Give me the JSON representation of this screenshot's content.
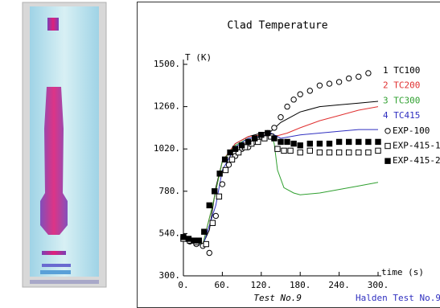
{
  "chart_data": {
    "type": "line",
    "title": "Clad Temperature",
    "y_label": "T (K)",
    "x_label": "time (s)",
    "footer_left": "Test No.9",
    "footer_right": "Halden Test No.9",
    "xlim": [
      0,
      300
    ],
    "ylim": [
      300,
      1500
    ],
    "xticks": [
      {
        "value": 0,
        "label": "0."
      },
      {
        "value": 60,
        "label": "60."
      },
      {
        "value": 120,
        "label": "120."
      },
      {
        "value": 180,
        "label": "180."
      },
      {
        "value": 240,
        "label": "240."
      },
      {
        "value": 300,
        "label": "300."
      }
    ],
    "yticks": [
      {
        "value": 300,
        "label": "300."
      },
      {
        "value": 540,
        "label": "540."
      },
      {
        "value": 780,
        "label": "780."
      },
      {
        "value": 1020,
        "label": "1020."
      },
      {
        "value": 1260,
        "label": "1260."
      },
      {
        "value": 1500,
        "label": "1500."
      }
    ],
    "series": [
      {
        "name": "1 TC100",
        "color": "#000000",
        "marker": "line",
        "x": [
          0,
          15,
          30,
          40,
          50,
          60,
          80,
          100,
          120,
          135,
          150,
          180,
          210,
          240,
          270,
          300
        ],
        "values": [
          500,
          490,
          480,
          560,
          800,
          950,
          1050,
          1090,
          1110,
          1120,
          1170,
          1230,
          1260,
          1270,
          1280,
          1290
        ]
      },
      {
        "name": "2 TC200",
        "color": "#e03030",
        "marker": "line",
        "x": [
          0,
          30,
          45,
          60,
          80,
          100,
          120,
          140,
          160,
          180,
          210,
          240,
          270,
          300
        ],
        "values": [
          500,
          480,
          700,
          950,
          1050,
          1090,
          1100,
          1090,
          1110,
          1140,
          1180,
          1210,
          1240,
          1260
        ]
      },
      {
        "name": "3 TC300",
        "color": "#30a030",
        "marker": "line",
        "x": [
          0,
          30,
          45,
          60,
          80,
          100,
          120,
          135,
          140,
          145,
          155,
          170,
          180,
          210,
          240,
          270,
          300
        ],
        "values": [
          500,
          480,
          700,
          950,
          1040,
          1080,
          1090,
          1100,
          1050,
          900,
          800,
          770,
          760,
          770,
          790,
          810,
          830
        ]
      },
      {
        "name": "4 TC415",
        "color": "#3030c0",
        "marker": "line",
        "x": [
          0,
          30,
          50,
          60,
          80,
          100,
          120,
          135,
          150,
          180,
          210,
          240,
          270,
          300
        ],
        "values": [
          500,
          470,
          700,
          900,
          1030,
          1080,
          1090,
          1110,
          1080,
          1100,
          1110,
          1120,
          1130,
          1130
        ]
      },
      {
        "name": "EXP-100",
        "color": "#000000",
        "marker": "circle",
        "x": [
          0,
          10,
          20,
          30,
          40,
          50,
          60,
          70,
          80,
          90,
          100,
          110,
          120,
          130,
          140,
          150,
          160,
          170,
          180,
          195,
          210,
          225,
          240,
          255,
          270,
          285
        ],
        "values": [
          510,
          495,
          480,
          470,
          430,
          640,
          820,
          930,
          980,
          1020,
          1030,
          1060,
          1090,
          1110,
          1140,
          1200,
          1260,
          1300,
          1330,
          1350,
          1380,
          1390,
          1400,
          1420,
          1430,
          1450
        ]
      },
      {
        "name": "EXP-415-1",
        "color": "#000000",
        "marker": "square",
        "x": [
          0,
          10,
          20,
          35,
          45,
          55,
          65,
          75,
          85,
          95,
          105,
          115,
          125,
          135,
          145,
          155,
          165,
          180,
          195,
          210,
          225,
          240,
          255,
          270,
          285,
          300
        ],
        "values": [
          510,
          500,
          490,
          480,
          600,
          750,
          900,
          960,
          1000,
          1030,
          1050,
          1060,
          1080,
          1090,
          1020,
          1010,
          1010,
          1000,
          1010,
          1000,
          1000,
          1000,
          1000,
          1000,
          1000,
          1010
        ]
      },
      {
        "name": "EXP-415-2",
        "color": "#000000",
        "marker": "filled-square",
        "x": [
          0,
          8,
          16,
          24,
          32,
          40,
          48,
          56,
          64,
          72,
          80,
          90,
          100,
          110,
          120,
          130,
          140,
          150,
          160,
          170,
          180,
          195,
          210,
          225,
          240,
          255,
          270,
          285,
          300
        ],
        "values": [
          520,
          510,
          500,
          500,
          550,
          700,
          780,
          880,
          960,
          1000,
          1020,
          1040,
          1060,
          1080,
          1100,
          1110,
          1080,
          1060,
          1060,
          1050,
          1040,
          1050,
          1050,
          1050,
          1060,
          1060,
          1060,
          1060,
          1060
        ]
      }
    ]
  }
}
